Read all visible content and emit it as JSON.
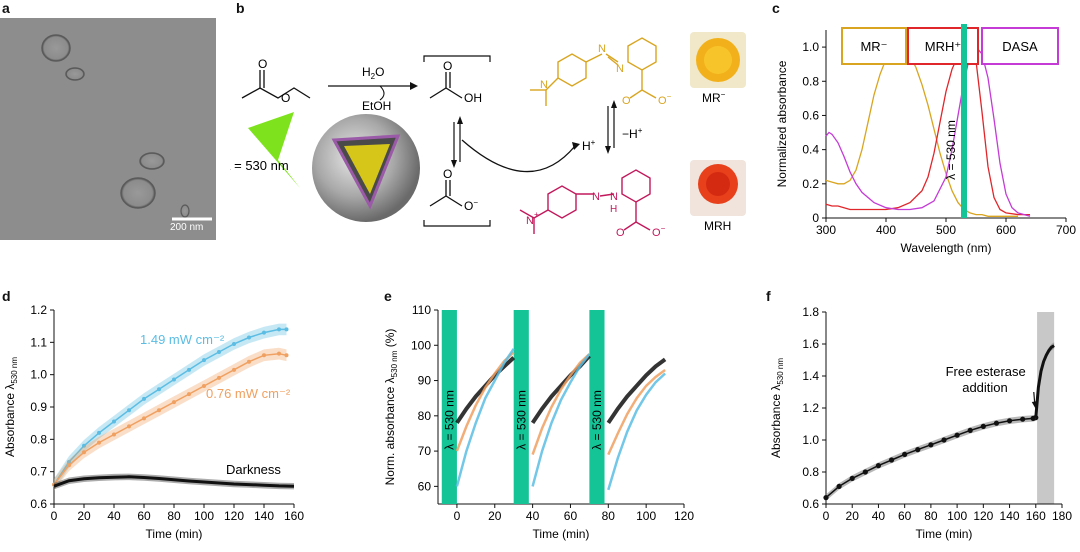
{
  "panels": {
    "a": {
      "letter": "a",
      "scalebar_label": "200 nm"
    },
    "b": {
      "letter": "b",
      "water": "H",
      "water_sub": "2",
      "water_o": "O",
      "etoh": "EtOH",
      "oh": "OH",
      "o_minus": "O",
      "o_minus_sup": "−",
      "h_plus": "H",
      "h_plus_sup": "+",
      "minus_h_plus": "−H",
      "mr_minus_label": "MR",
      "mr_minus_sup": "−",
      "mrh_label": "MRH",
      "lambda_label": "λ = 530 nm",
      "n_atom": "N",
      "n_plus": "+",
      "nh_atom": "N",
      "h_atom": "H"
    },
    "c": {
      "letter": "c",
      "legend_boxes": [
        {
          "label": "MR⁻",
          "color": "#d9a520"
        },
        {
          "label": "MRH⁺",
          "color": "#e0262b"
        },
        {
          "label": "DASA",
          "color": "#c43bd6"
        }
      ],
      "vline_label": "λ = 530 nm"
    },
    "d": {
      "letter": "d",
      "label_high": "1.49 mW cm⁻²",
      "label_low": "0.76 mW cm⁻²",
      "label_dark": "Darkness"
    },
    "e": {
      "letter": "e",
      "band_label": "λ = 530 nm"
    },
    "f": {
      "letter": "f",
      "annotation_line1": "Free esterase",
      "annotation_line2": "addition"
    }
  },
  "colors": {
    "yellow": "#d9a520",
    "red": "#e0262b",
    "magenta": "#c43bd6",
    "teal": "#14c497",
    "blue": "#5bbde3",
    "orange": "#f0a060",
    "black": "#111111",
    "gray_band": "#c8c8c8",
    "lime": "#7ee31d"
  },
  "chart_data": [
    {
      "id": "c",
      "type": "line",
      "xlabel": "Wavelength (nm)",
      "ylabel": "Normalized absorbance",
      "xlim": [
        300,
        700
      ],
      "ylim": [
        0,
        1.1
      ],
      "xticks": [
        300,
        400,
        500,
        600,
        700
      ],
      "yticks": [
        0,
        0.2,
        0.4,
        0.6,
        0.8,
        1.0
      ],
      "ytick_labels": [
        "0",
        "0.2",
        "0.4",
        "0.6",
        "0.8",
        "1.0"
      ],
      "vline_x": 530,
      "series": [
        {
          "name": "MR⁻",
          "color": "#d9a520",
          "x": [
            300,
            310,
            320,
            330,
            340,
            350,
            360,
            370,
            380,
            390,
            400,
            410,
            420,
            430,
            440,
            450,
            460,
            470,
            480,
            490,
            500,
            510,
            520,
            530,
            540,
            550,
            560,
            570,
            580,
            600,
            620
          ],
          "y": [
            0.22,
            0.21,
            0.2,
            0.2,
            0.22,
            0.28,
            0.4,
            0.56,
            0.72,
            0.84,
            0.93,
            0.98,
            1.0,
            0.99,
            0.95,
            0.88,
            0.78,
            0.66,
            0.52,
            0.38,
            0.26,
            0.16,
            0.09,
            0.05,
            0.03,
            0.02,
            0.02,
            0.01,
            0.01,
            0.01,
            0.01
          ]
        },
        {
          "name": "MRH⁺",
          "color": "#e0262b",
          "x": [
            300,
            310,
            320,
            330,
            340,
            360,
            380,
            400,
            420,
            440,
            460,
            470,
            480,
            490,
            500,
            510,
            520,
            530,
            540,
            550,
            560,
            570,
            580,
            590,
            600,
            620,
            640
          ],
          "y": [
            0.08,
            0.07,
            0.07,
            0.06,
            0.05,
            0.05,
            0.05,
            0.05,
            0.06,
            0.09,
            0.16,
            0.24,
            0.38,
            0.56,
            0.74,
            0.87,
            0.95,
            0.99,
            1.0,
            0.92,
            0.62,
            0.3,
            0.12,
            0.05,
            0.03,
            0.02,
            0.02
          ]
        },
        {
          "name": "DASA",
          "color": "#c43bd6",
          "x": [
            300,
            305,
            310,
            320,
            330,
            340,
            350,
            360,
            380,
            400,
            420,
            440,
            460,
            480,
            500,
            510,
            520,
            530,
            540,
            550,
            560,
            570,
            580,
            590,
            600,
            610,
            620,
            640
          ],
          "y": [
            0.48,
            0.5,
            0.49,
            0.44,
            0.36,
            0.27,
            0.2,
            0.15,
            0.09,
            0.06,
            0.05,
            0.05,
            0.06,
            0.1,
            0.24,
            0.4,
            0.6,
            0.8,
            0.95,
            1.0,
            0.96,
            0.82,
            0.58,
            0.32,
            0.14,
            0.06,
            0.03,
            0.01
          ]
        }
      ]
    },
    {
      "id": "d",
      "type": "line",
      "xlabel": "Time (min)",
      "ylabel": "Absorbance λ530 nm",
      "xlim": [
        0,
        160
      ],
      "ylim": [
        0.6,
        1.2
      ],
      "xticks": [
        0,
        20,
        40,
        60,
        80,
        100,
        120,
        140,
        160
      ],
      "yticks": [
        0.6,
        0.7,
        0.8,
        0.9,
        1.0,
        1.1,
        1.2
      ],
      "ytick_labels": [
        "0.6",
        "0.7",
        "0.8",
        "0.9",
        "1.0",
        "1.1",
        "1.2"
      ],
      "series": [
        {
          "name": "1.49 mW cm⁻²",
          "color": "#5bbde3",
          "band": 0.018,
          "x": [
            0,
            10,
            20,
            30,
            40,
            50,
            60,
            70,
            80,
            90,
            100,
            110,
            120,
            130,
            140,
            150,
            155
          ],
          "y": [
            0.66,
            0.73,
            0.78,
            0.82,
            0.855,
            0.89,
            0.925,
            0.955,
            0.985,
            1.015,
            1.045,
            1.07,
            1.095,
            1.115,
            1.13,
            1.14,
            1.14
          ]
        },
        {
          "name": "0.76 mW cm⁻²",
          "color": "#f0a060",
          "band": 0.018,
          "x": [
            0,
            10,
            20,
            30,
            40,
            50,
            60,
            70,
            80,
            90,
            100,
            110,
            120,
            130,
            140,
            150,
            155
          ],
          "y": [
            0.66,
            0.72,
            0.76,
            0.79,
            0.815,
            0.84,
            0.865,
            0.89,
            0.915,
            0.94,
            0.965,
            0.99,
            1.015,
            1.04,
            1.06,
            1.065,
            1.06
          ]
        },
        {
          "name": "Darkness",
          "color": "#111111",
          "band": 0.01,
          "x": [
            0,
            10,
            20,
            30,
            40,
            50,
            60,
            70,
            80,
            90,
            100,
            110,
            120,
            130,
            140,
            150,
            160
          ],
          "y": [
            0.655,
            0.672,
            0.678,
            0.681,
            0.683,
            0.684,
            0.682,
            0.679,
            0.675,
            0.671,
            0.668,
            0.665,
            0.662,
            0.66,
            0.658,
            0.656,
            0.655
          ]
        }
      ]
    },
    {
      "id": "e",
      "type": "line",
      "xlabel": "Time (min)",
      "ylabel": "Norm. absorbance λ530 nm (%)",
      "xlim": [
        -10,
        120
      ],
      "ylim": [
        55,
        110
      ],
      "xticks": [
        0,
        20,
        40,
        60,
        80,
        100,
        120
      ],
      "yticks": [
        60,
        70,
        80,
        90,
        100,
        110
      ],
      "irradiation_bands": [
        [
          -8,
          0
        ],
        [
          30,
          38
        ],
        [
          70,
          78
        ]
      ],
      "segments": [
        {
          "name": "black",
          "color": "#111111",
          "x": [
            0,
            5,
            10,
            15,
            20,
            25,
            30
          ],
          "y": [
            78,
            82,
            85.5,
            88.5,
            91.5,
            94,
            96.5
          ]
        },
        {
          "name": "orange",
          "color": "#f0a060",
          "x": [
            0,
            5,
            10,
            15,
            20,
            25,
            30
          ],
          "y": [
            70,
            77,
            83,
            88,
            92,
            95.5,
            98
          ]
        },
        {
          "name": "blue",
          "color": "#5bbde3",
          "x": [
            0,
            5,
            10,
            15,
            20,
            25,
            30
          ],
          "y": [
            60,
            70,
            78,
            85,
            90,
            95,
            99
          ]
        },
        {
          "name": "black",
          "color": "#111111",
          "x": [
            40,
            45,
            50,
            55,
            60,
            65,
            70
          ],
          "y": [
            78,
            82,
            85.5,
            88.5,
            91.5,
            94,
            97
          ]
        },
        {
          "name": "orange",
          "color": "#f0a060",
          "x": [
            40,
            45,
            50,
            55,
            60,
            65,
            70
          ],
          "y": [
            69,
            76.5,
            82.5,
            87.5,
            91.5,
            95,
            97.5
          ]
        },
        {
          "name": "blue",
          "color": "#5bbde3",
          "x": [
            40,
            45,
            50,
            55,
            60,
            65,
            70
          ],
          "y": [
            60,
            70,
            78,
            84.5,
            89.5,
            94,
            97.5
          ]
        },
        {
          "name": "black",
          "color": "#111111",
          "x": [
            80,
            85,
            90,
            95,
            100,
            105,
            110
          ],
          "y": [
            78,
            82,
            85.5,
            88.5,
            91.5,
            94,
            96
          ]
        },
        {
          "name": "orange",
          "color": "#f0a060",
          "x": [
            80,
            85,
            90,
            95,
            100,
            105,
            110
          ],
          "y": [
            69,
            75,
            80.5,
            85,
            88.5,
            91,
            93
          ]
        },
        {
          "name": "blue",
          "color": "#5bbde3",
          "x": [
            80,
            85,
            90,
            95,
            100,
            105,
            110
          ],
          "y": [
            59,
            68,
            75.5,
            81.5,
            86,
            89.5,
            92
          ]
        }
      ]
    },
    {
      "id": "f",
      "type": "line",
      "xlabel": "Time (min)",
      "ylabel": "Absorbance λ530 nm",
      "xlim": [
        0,
        180
      ],
      "ylim": [
        0.6,
        1.8
      ],
      "xticks": [
        0,
        20,
        40,
        60,
        80,
        100,
        120,
        140,
        160,
        180
      ],
      "yticks": [
        0.6,
        0.8,
        1.0,
        1.2,
        1.4,
        1.6,
        1.8
      ],
      "ytick_labels": [
        "0.6",
        "0.8",
        "1.0",
        "1.2",
        "1.4",
        "1.6",
        "1.8"
      ],
      "shaded_region": [
        161,
        174
      ],
      "annotation_arrow_x": 160,
      "series": [
        {
          "name": "main",
          "color": "#111111",
          "x": [
            0,
            10,
            20,
            30,
            40,
            50,
            60,
            70,
            80,
            90,
            100,
            110,
            120,
            130,
            140,
            150,
            158,
            160
          ],
          "y": [
            0.64,
            0.71,
            0.76,
            0.8,
            0.84,
            0.875,
            0.91,
            0.94,
            0.97,
            1.0,
            1.03,
            1.06,
            1.085,
            1.105,
            1.12,
            1.13,
            1.135,
            1.14
          ]
        },
        {
          "name": "rise",
          "color": "#111111",
          "x": [
            160,
            162,
            164,
            166,
            168,
            170,
            172,
            174
          ],
          "y": [
            1.14,
            1.33,
            1.43,
            1.49,
            1.53,
            1.56,
            1.58,
            1.59
          ]
        }
      ]
    }
  ]
}
